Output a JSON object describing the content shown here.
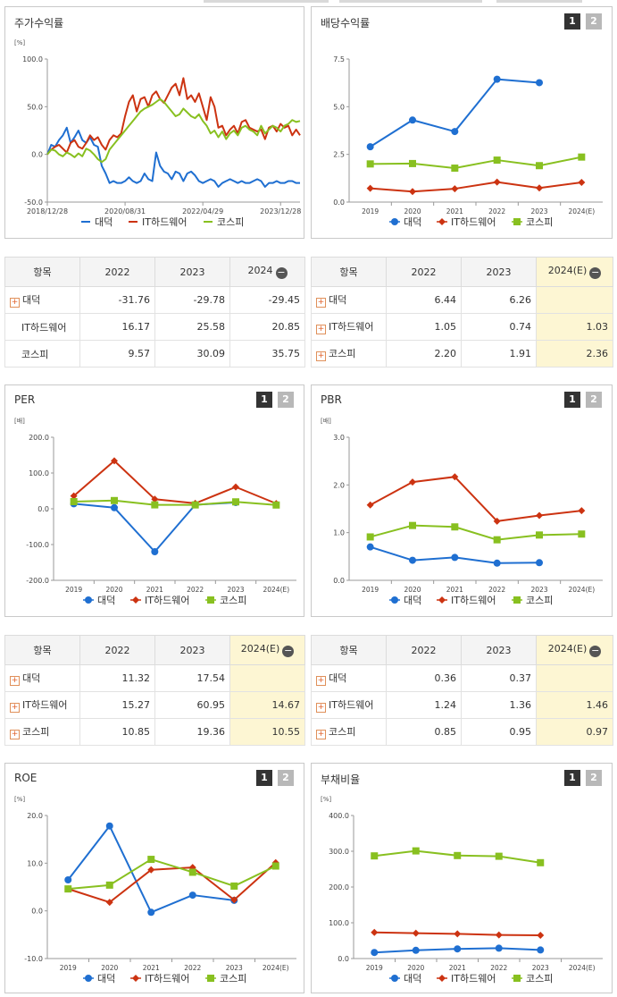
{
  "colors": {
    "daeduk": "#1f6fd1",
    "it": "#cc3311",
    "kospi": "#88c020"
  },
  "icons": {
    "expand": "plus-icon",
    "collapse": "minus-circle-icon"
  },
  "legend": [
    "대덕",
    "IT하드웨어",
    "코스피"
  ],
  "toggles": [
    "1",
    "2"
  ],
  "panels": {
    "stock": {
      "title": "주가수익률"
    },
    "div": {
      "title": "배당수익률"
    },
    "per": {
      "title": "PER"
    },
    "pbr": {
      "title": "PBR"
    },
    "roe": {
      "title": "ROE"
    },
    "debt": {
      "title": "부채비율"
    }
  },
  "tables": {
    "stock": {
      "headers": [
        "항목",
        "2022",
        "2023",
        "2024"
      ],
      "rows": [
        {
          "name": "대덕",
          "v": [
            "-31.76",
            "-29.78",
            "-29.45"
          ]
        },
        {
          "name": "IT하드웨어",
          "v": [
            "16.17",
            "25.58",
            "20.85"
          ]
        },
        {
          "name": "코스피",
          "v": [
            "9.57",
            "30.09",
            "35.75"
          ]
        }
      ]
    },
    "div": {
      "headers": [
        "항목",
        "2022",
        "2023",
        "2024(E)"
      ],
      "rows": [
        {
          "name": "대덕",
          "v": [
            "6.44",
            "6.26",
            ""
          ]
        },
        {
          "name": "IT하드웨어",
          "v": [
            "1.05",
            "0.74",
            "1.03"
          ]
        },
        {
          "name": "코스피",
          "v": [
            "2.20",
            "1.91",
            "2.36"
          ]
        }
      ]
    },
    "per": {
      "headers": [
        "항목",
        "2022",
        "2023",
        "2024(E)"
      ],
      "rows": [
        {
          "name": "대덕",
          "v": [
            "11.32",
            "17.54",
            ""
          ]
        },
        {
          "name": "IT하드웨어",
          "v": [
            "15.27",
            "60.95",
            "14.67"
          ]
        },
        {
          "name": "코스피",
          "v": [
            "10.85",
            "19.36",
            "10.55"
          ]
        }
      ]
    },
    "pbr": {
      "headers": [
        "항목",
        "2022",
        "2023",
        "2024(E)"
      ],
      "rows": [
        {
          "name": "대덕",
          "v": [
            "0.36",
            "0.37",
            ""
          ]
        },
        {
          "name": "IT하드웨어",
          "v": [
            "1.24",
            "1.36",
            "1.46"
          ]
        },
        {
          "name": "코스피",
          "v": [
            "0.85",
            "0.95",
            "0.97"
          ]
        }
      ]
    }
  },
  "chart_data": [
    {
      "id": "stock",
      "type": "line",
      "title": "주가수익률",
      "unit": "[%]",
      "ylim": [
        -50,
        100
      ],
      "yticks": [
        -50,
        0,
        50,
        100
      ],
      "ytick_labels": [
        "-50.0",
        "0.0",
        "50.0",
        "100.0"
      ],
      "x_tick_labels": [
        "2018/12/28",
        "2020/08/31",
        "2022/04/29",
        "2023/12/28"
      ],
      "x_tick_index": [
        0,
        20,
        40,
        60
      ],
      "n": 66,
      "series": [
        {
          "name": "대덕",
          "key": "daeduk",
          "values": [
            0,
            10,
            8,
            15,
            20,
            28,
            12,
            18,
            25,
            15,
            12,
            18,
            10,
            8,
            -12,
            -20,
            -30,
            -28,
            -30,
            -30,
            -28,
            -24,
            -28,
            -30,
            -28,
            -20,
            -26,
            -28,
            2,
            -12,
            -18,
            -20,
            -26,
            -18,
            -20,
            -28,
            -20,
            -18,
            -22,
            -28,
            -30,
            -28,
            -26,
            -28,
            -34,
            -30,
            -28,
            -26,
            -28,
            -30,
            -28,
            -30,
            -30,
            -28,
            -26,
            -28,
            -34,
            -30,
            -30,
            -28,
            -30,
            -30,
            -28,
            -28,
            -30,
            -30
          ]
        },
        {
          "name": "IT하드웨어",
          "key": "it",
          "values": [
            0,
            5,
            8,
            10,
            6,
            2,
            12,
            15,
            8,
            6,
            12,
            20,
            15,
            18,
            10,
            5,
            15,
            20,
            18,
            22,
            40,
            55,
            62,
            45,
            58,
            60,
            50,
            62,
            66,
            58,
            54,
            62,
            70,
            74,
            62,
            80,
            58,
            62,
            55,
            64,
            50,
            36,
            60,
            50,
            28,
            30,
            20,
            26,
            30,
            22,
            34,
            36,
            28,
            26,
            24,
            26,
            16,
            28,
            30,
            24,
            32,
            28,
            30,
            20,
            26,
            20
          ]
        },
        {
          "name": "코스피",
          "key": "kospi",
          "values": [
            0,
            5,
            4,
            0,
            -2,
            2,
            0,
            -3,
            1,
            -2,
            6,
            4,
            0,
            -5,
            -8,
            -5,
            5,
            10,
            15,
            20,
            25,
            30,
            35,
            40,
            45,
            48,
            50,
            52,
            55,
            58,
            55,
            50,
            45,
            40,
            42,
            48,
            44,
            40,
            38,
            42,
            35,
            30,
            22,
            25,
            18,
            24,
            16,
            22,
            25,
            20,
            28,
            30,
            26,
            24,
            20,
            30,
            22,
            26,
            30,
            28,
            24,
            30,
            32,
            36,
            34,
            35
          ]
        }
      ]
    },
    {
      "id": "div",
      "type": "line",
      "title": "배당수익률",
      "ylim": [
        0,
        7.5
      ],
      "yticks": [
        0,
        2.5,
        5,
        7.5
      ],
      "ytick_labels": [
        "0.0",
        "2.5",
        "5.0",
        "7.5"
      ],
      "categories": [
        "2019",
        "2020",
        "2021",
        "2022",
        "2023",
        "2024(E)"
      ],
      "series": [
        {
          "name": "대덕",
          "key": "daeduk",
          "values": [
            2.9,
            4.3,
            3.7,
            6.44,
            6.26,
            null
          ]
        },
        {
          "name": "IT하드웨어",
          "key": "it",
          "values": [
            0.72,
            0.55,
            0.7,
            1.05,
            0.74,
            1.03
          ]
        },
        {
          "name": "코스피",
          "key": "kospi",
          "values": [
            2.0,
            2.02,
            1.78,
            2.2,
            1.91,
            2.36
          ]
        }
      ]
    },
    {
      "id": "per",
      "type": "line",
      "title": "PER",
      "unit": "[배]",
      "ylim": [
        -200,
        200
      ],
      "yticks": [
        -200,
        -100,
        0,
        100,
        200
      ],
      "ytick_labels": [
        "-200.0",
        "-100.0",
        "0.0",
        "100.0",
        "200.0"
      ],
      "categories": [
        "2019",
        "2020",
        "2021",
        "2022",
        "2023",
        "2024(E)"
      ],
      "series": [
        {
          "name": "대덕",
          "key": "daeduk",
          "values": [
            14,
            3,
            -120,
            11.32,
            17.54,
            null
          ]
        },
        {
          "name": "IT하드웨어",
          "key": "it",
          "values": [
            36,
            134,
            27,
            15.27,
            60.95,
            14.67
          ]
        },
        {
          "name": "코스피",
          "key": "kospi",
          "values": [
            20,
            23,
            11,
            10.85,
            19.36,
            10.55
          ]
        }
      ]
    },
    {
      "id": "pbr",
      "type": "line",
      "title": "PBR",
      "unit": "[배]",
      "ylim": [
        0,
        3
      ],
      "yticks": [
        0,
        1,
        2,
        3
      ],
      "ytick_labels": [
        "0.0",
        "1.0",
        "2.0",
        "3.0"
      ],
      "categories": [
        "2019",
        "2020",
        "2021",
        "2022",
        "2023",
        "2024(E)"
      ],
      "series": [
        {
          "name": "대덕",
          "key": "daeduk",
          "values": [
            0.7,
            0.42,
            0.48,
            0.36,
            0.37,
            null
          ]
        },
        {
          "name": "IT하드웨어",
          "key": "it",
          "values": [
            1.58,
            2.06,
            2.17,
            1.24,
            1.36,
            1.46
          ]
        },
        {
          "name": "코스피",
          "key": "kospi",
          "values": [
            0.91,
            1.15,
            1.12,
            0.85,
            0.95,
            0.97
          ]
        }
      ]
    },
    {
      "id": "roe",
      "type": "line",
      "title": "ROE",
      "unit": "[%]",
      "ylim": [
        -10,
        20
      ],
      "yticks": [
        -10,
        0,
        10,
        20
      ],
      "ytick_labels": [
        "-10.0",
        "0.0",
        "10.0",
        "20.0"
      ],
      "categories": [
        "2019",
        "2020",
        "2021",
        "2022",
        "2023",
        "2024(E)"
      ],
      "series": [
        {
          "name": "대덕",
          "key": "daeduk",
          "values": [
            6.5,
            17.8,
            -0.3,
            3.3,
            2.2,
            null
          ]
        },
        {
          "name": "IT하드웨어",
          "key": "it",
          "values": [
            4.6,
            1.8,
            8.6,
            9.1,
            2.3,
            10.1
          ]
        },
        {
          "name": "코스피",
          "key": "kospi",
          "values": [
            4.6,
            5.4,
            10.8,
            8.1,
            5.2,
            9.4
          ]
        }
      ]
    },
    {
      "id": "debt",
      "type": "line",
      "title": "부채비율",
      "unit": "[%]",
      "ylim": [
        0,
        400
      ],
      "yticks": [
        0,
        100,
        200,
        300,
        400
      ],
      "ytick_labels": [
        "0.0",
        "100.0",
        "200.0",
        "300.0",
        "400.0"
      ],
      "categories": [
        "2019",
        "2020",
        "2021",
        "2022",
        "2023",
        "2024(E)"
      ],
      "series": [
        {
          "name": "대덕",
          "key": "daeduk",
          "values": [
            17,
            23,
            27,
            29,
            24,
            null
          ]
        },
        {
          "name": "IT하드웨어",
          "key": "it",
          "values": [
            73,
            71,
            69,
            66,
            65,
            null
          ]
        },
        {
          "name": "코스피",
          "key": "kospi",
          "values": [
            287,
            301,
            288,
            286,
            268,
            null
          ]
        }
      ]
    }
  ]
}
